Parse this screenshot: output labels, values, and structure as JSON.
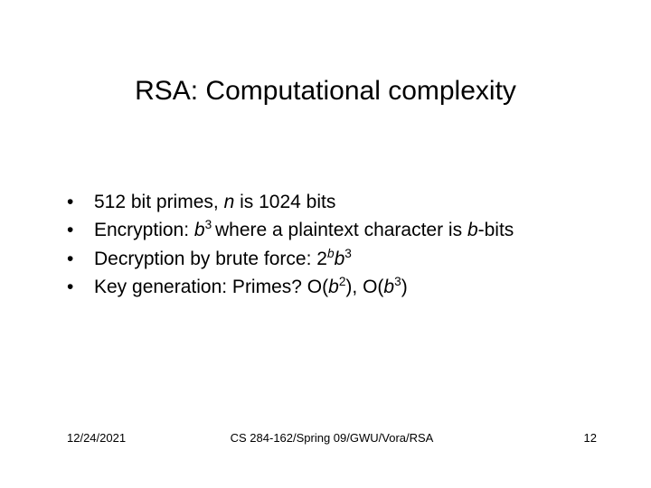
{
  "title": "RSA: Computational complexity",
  "bullets": {
    "mark": "•",
    "items": [
      {
        "pre": "512 bit primes, ",
        "var1": "n",
        "post1": " is 1024 bits"
      },
      {
        "pre": "Encryption: ",
        "var1": "b",
        "sup1": "3 ",
        "mid1": "where a plaintext character is ",
        "var2": "b",
        "post1": "-bits"
      },
      {
        "pre": "Decryption by brute force: 2",
        "supvar1": "b",
        "var1": "b",
        "sup1": "3"
      },
      {
        "pre": "Key generation: Primes? O(",
        "var1": "b",
        "sup1": "2",
        "mid1": "), O(",
        "var2": "b",
        "sup2": "3",
        "post1": ")"
      }
    ]
  },
  "footer": {
    "date": "12/24/2021",
    "center": "CS 284-162/Spring 09/GWU/Vora/RSA",
    "page": "12"
  },
  "styling": {
    "background_color": "#ffffff",
    "text_color": "#000000",
    "title_fontsize": 30,
    "body_fontsize": 21,
    "footer_fontsize": 13,
    "font_family": "Arial"
  }
}
